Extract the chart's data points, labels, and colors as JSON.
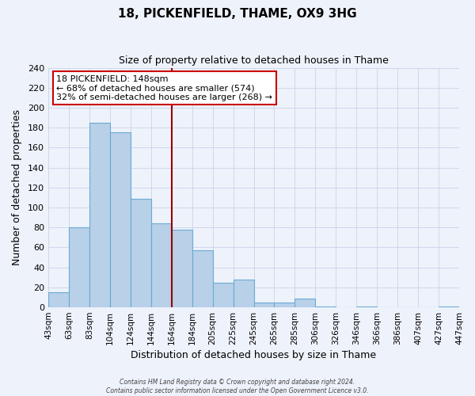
{
  "title": "18, PICKENFIELD, THAME, OX9 3HG",
  "subtitle": "Size of property relative to detached houses in Thame",
  "xlabel": "Distribution of detached houses by size in Thame",
  "ylabel": "Number of detached properties",
  "bin_labels": [
    "43sqm",
    "63sqm",
    "83sqm",
    "104sqm",
    "124sqm",
    "144sqm",
    "164sqm",
    "184sqm",
    "205sqm",
    "225sqm",
    "245sqm",
    "265sqm",
    "285sqm",
    "306sqm",
    "326sqm",
    "346sqm",
    "366sqm",
    "386sqm",
    "407sqm",
    "427sqm",
    "447sqm"
  ],
  "bar_values": [
    15,
    80,
    185,
    175,
    109,
    84,
    78,
    57,
    25,
    28,
    5,
    5,
    9,
    1,
    0,
    1,
    0,
    0,
    0,
    1
  ],
  "bar_color": "#b8d0e8",
  "bar_edge_color": "#6aaad4",
  "ylim": [
    0,
    240
  ],
  "yticks": [
    0,
    20,
    40,
    60,
    80,
    100,
    120,
    140,
    160,
    180,
    200,
    220,
    240
  ],
  "vline_x": 5.5,
  "vline_color": "#990000",
  "annotation_title": "18 PICKENFIELD: 148sqm",
  "annotation_line1": "← 68% of detached houses are smaller (574)",
  "annotation_line2": "32% of semi-detached houses are larger (268) →",
  "annotation_box_facecolor": "#ffffff",
  "annotation_box_edgecolor": "#cc0000",
  "footer_line1": "Contains HM Land Registry data © Crown copyright and database right 2024.",
  "footer_line2": "Contains public sector information licensed under the Open Government Licence v3.0.",
  "background_color": "#eef2fb",
  "plot_background_color": "#eef2fb"
}
